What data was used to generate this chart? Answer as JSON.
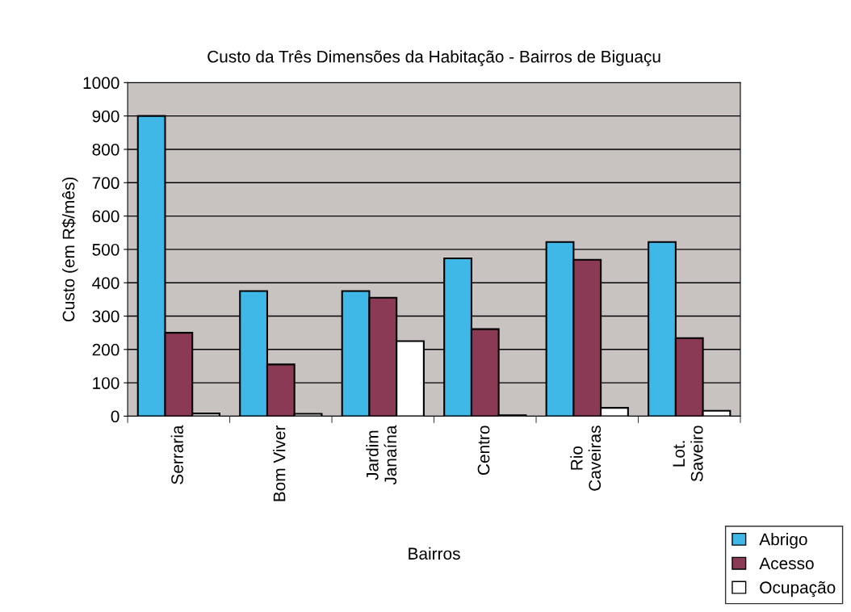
{
  "chart_data": {
    "type": "bar",
    "title": "Custo da Três Dimensões da Habitação - Bairros de Biguaçu",
    "xlabel": "Bairros",
    "ylabel": "Custo (em R$/mês)",
    "categories": [
      "Serraria",
      "Bom Viver",
      "Jardim\nJanaína",
      "Centro",
      "Rio\nCaveiras",
      "Lot.\nSaveiro"
    ],
    "series": [
      {
        "name": "Abrigo",
        "color": "#3fb8e8",
        "values": [
          900,
          375,
          375,
          473,
          522,
          522
        ]
      },
      {
        "name": "Acesso",
        "color": "#8b3a55",
        "values": [
          250,
          155,
          355,
          261,
          469,
          234
        ]
      },
      {
        "name": "Ocupação",
        "color": "#ffffff",
        "values": [
          8,
          7,
          225,
          3,
          25,
          16
        ]
      }
    ],
    "ylim": [
      0,
      1000
    ],
    "yticks": [
      0,
      100,
      200,
      300,
      400,
      500,
      600,
      700,
      800,
      900,
      1000
    ],
    "grid": "y",
    "legend": "bottom right"
  }
}
